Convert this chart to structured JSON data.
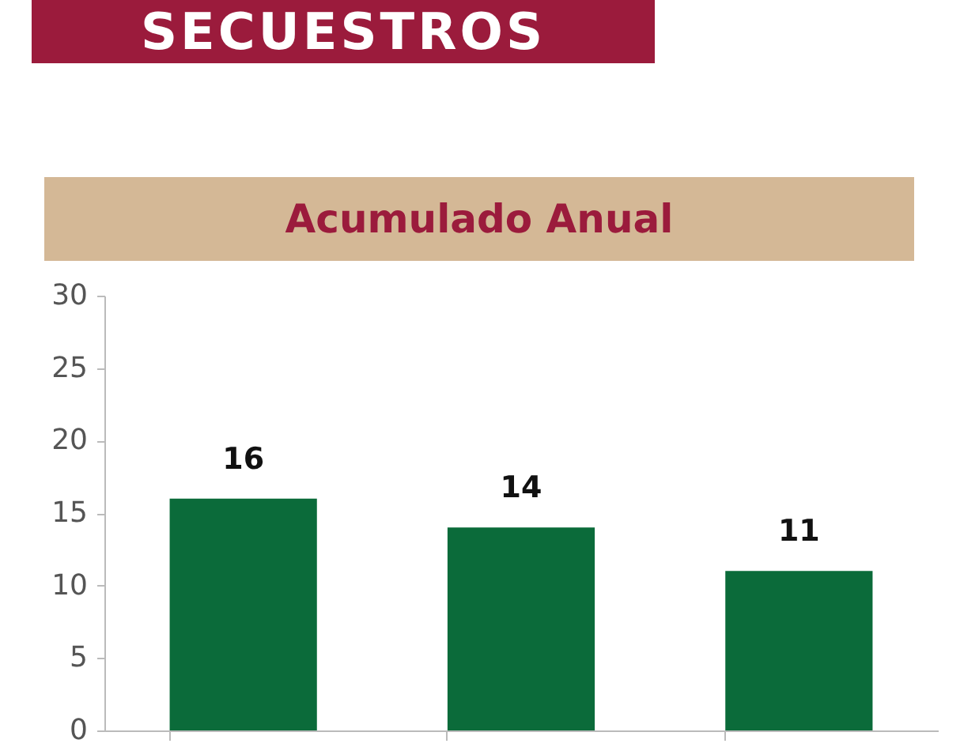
{
  "chart_data": {
    "type": "bar",
    "title": "SECUESTROS",
    "subtitle": "Acumulado Anual",
    "categories": [
      null,
      null,
      null
    ],
    "values": [
      16,
      14,
      11
    ],
    "color": "#0b6b3a",
    "ylim": [
      0,
      30
    ],
    "yticks": [
      0,
      5,
      10,
      15,
      20,
      25,
      30
    ],
    "data_labels": true,
    "grid": false
  }
}
